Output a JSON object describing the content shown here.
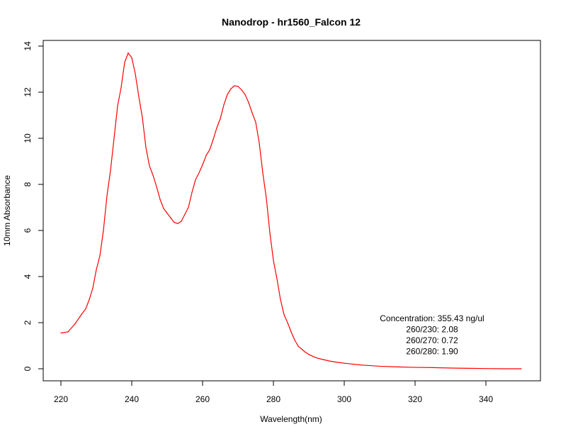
{
  "chart_data": {
    "type": "line",
    "title": "Nanodrop - hr1560_Falcon 12",
    "xlabel": "Wavelength(nm)",
    "ylabel": "10mm Absorbance",
    "xlim": [
      220,
      350
    ],
    "ylim": [
      0,
      14
    ],
    "xticks": [
      220,
      240,
      260,
      280,
      300,
      320,
      340
    ],
    "yticks": [
      0,
      2,
      4,
      6,
      8,
      10,
      12,
      14
    ],
    "grid": false,
    "series": [
      {
        "color": "#ff0000",
        "x": [
          220,
          222,
          224,
          226,
          227,
          228,
          229,
          230,
          231,
          232,
          233,
          234,
          235,
          236,
          237,
          238,
          239,
          240,
          241,
          242,
          243,
          244,
          245,
          246,
          247,
          248,
          249,
          250,
          251,
          252,
          253,
          254,
          255,
          256,
          257,
          258,
          259,
          260,
          261,
          262,
          263,
          264,
          265,
          266,
          267,
          268,
          269,
          270,
          271,
          272,
          273,
          274,
          275,
          276,
          277,
          278,
          279,
          280,
          281,
          282,
          283,
          284,
          285,
          286,
          287,
          288,
          289,
          290,
          292,
          294,
          296,
          298,
          300,
          305,
          310,
          315,
          320,
          325,
          330,
          335,
          340,
          345,
          350
        ],
        "y": [
          1.55,
          1.6,
          1.95,
          2.4,
          2.6,
          3.0,
          3.5,
          4.3,
          4.9,
          6.0,
          7.5,
          8.6,
          10.0,
          11.4,
          12.2,
          13.3,
          13.7,
          13.5,
          12.8,
          11.8,
          10.9,
          9.6,
          8.8,
          8.4,
          7.9,
          7.35,
          6.95,
          6.75,
          6.55,
          6.35,
          6.3,
          6.4,
          6.7,
          7.0,
          7.65,
          8.2,
          8.5,
          8.85,
          9.25,
          9.5,
          9.95,
          10.45,
          10.85,
          11.45,
          11.9,
          12.15,
          12.28,
          12.25,
          12.1,
          11.9,
          11.55,
          11.1,
          10.7,
          9.8,
          8.5,
          7.4,
          5.9,
          4.7,
          3.9,
          3.0,
          2.35,
          2.0,
          1.6,
          1.25,
          0.98,
          0.85,
          0.72,
          0.62,
          0.48,
          0.4,
          0.33,
          0.28,
          0.24,
          0.16,
          0.11,
          0.08,
          0.06,
          0.05,
          0.03,
          0.02,
          0.01,
          0.0,
          0.0
        ]
      }
    ],
    "annotation_lines": [
      "Concentration: 355.43 ng/ul",
      "260/230: 2.08",
      "260/270: 0.72",
      "260/280: 1.90"
    ]
  }
}
